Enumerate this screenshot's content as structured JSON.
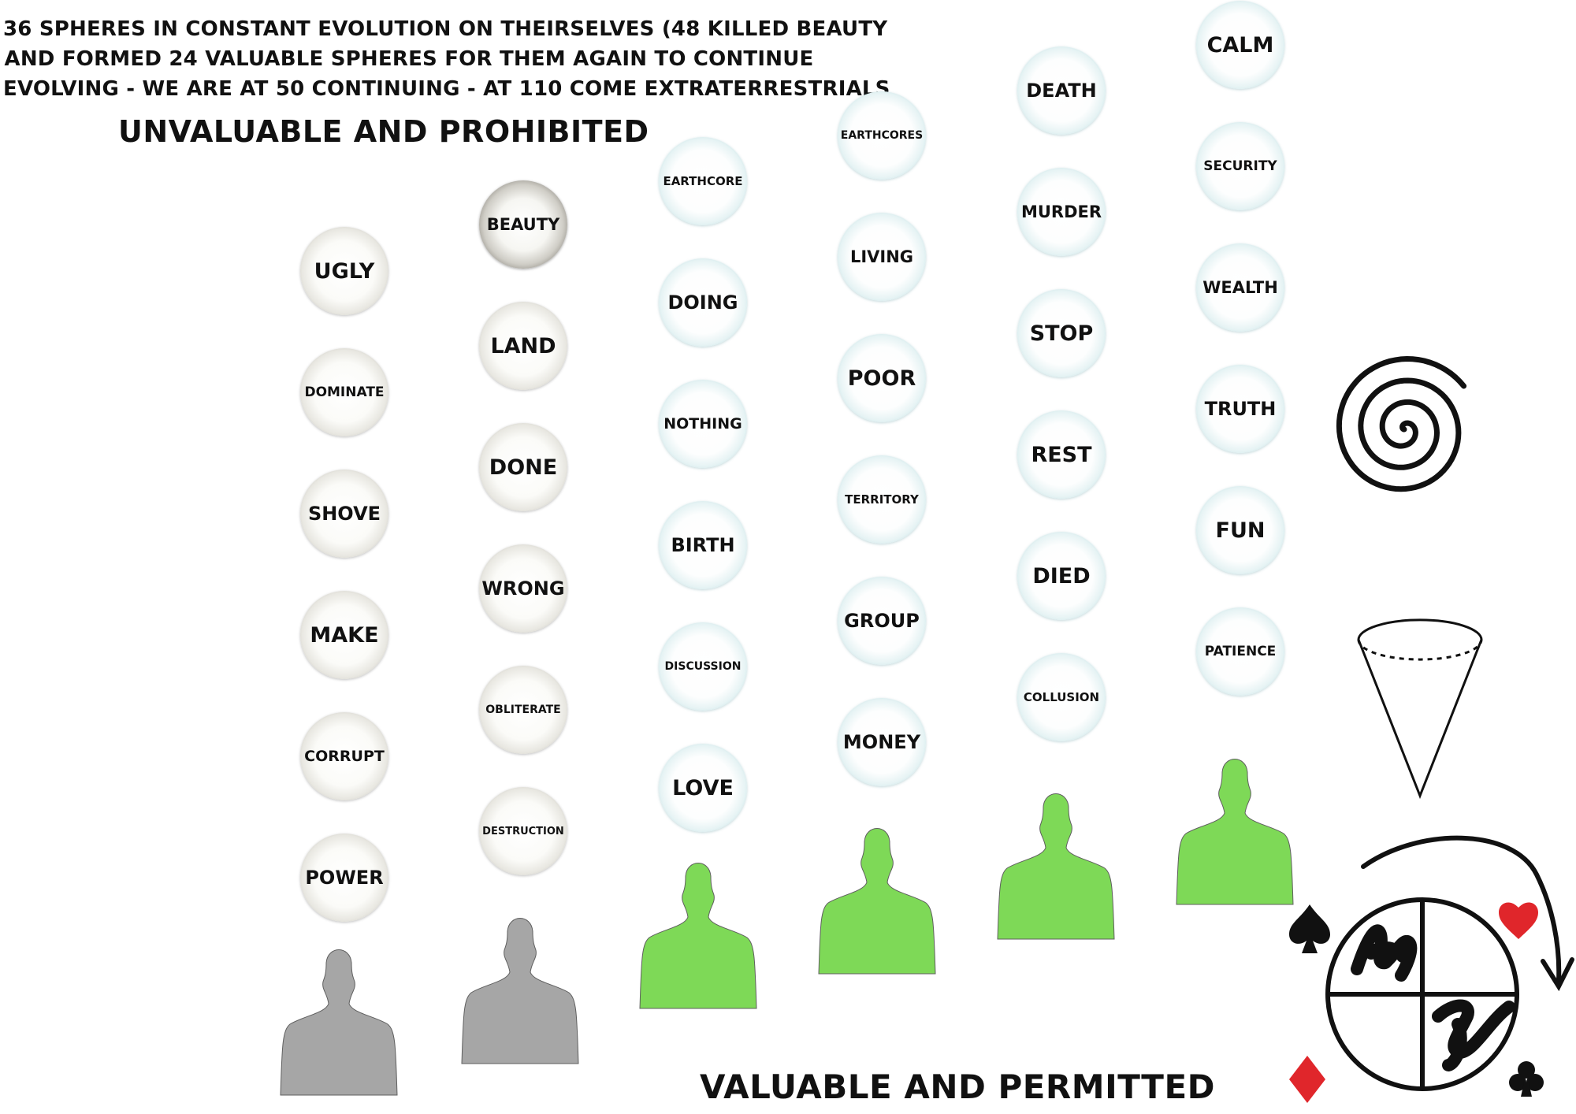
{
  "intro_lines": [
    "36 SPHERES IN CONSTANT EVOLUTION ON THEIRSELVES (48 KILLED BEAUTY",
    "AND FORMED 24 VALUABLE SPHERES FOR THEM AGAIN TO CONTINUE",
    "EVOLVING - WE ARE AT 50 CONTINUING - AT 110 COME EXTRATERRESTRIALS"
  ],
  "heading_left": "UNVALUABLE AND PROHIBITED",
  "heading_right": "VALUABLE AND PERMITTED",
  "colors": {
    "grey_sphere_rim": "#8c8a82",
    "teal_sphere_rim": "#7fbcc3",
    "person_grey": "#a6a6a6",
    "person_green": "#7ed957",
    "suit_red": "#e0262b",
    "ink": "#111111"
  },
  "columns": [
    {
      "group": "unvaluable",
      "person": "grey-person-icon",
      "spheres": [
        {
          "label": "UGLY",
          "tone": "grey"
        },
        {
          "label": "DOMINATE",
          "tone": "grey"
        },
        {
          "label": "SHOVE",
          "tone": "grey"
        },
        {
          "label": "MAKE",
          "tone": "grey"
        },
        {
          "label": "CORRUPT",
          "tone": "grey"
        },
        {
          "label": "POWER",
          "tone": "grey"
        }
      ]
    },
    {
      "group": "unvaluable",
      "person": "grey-person-icon",
      "spheres": [
        {
          "label": "BEAUTY",
          "tone": "dark"
        },
        {
          "label": "LAND",
          "tone": "grey"
        },
        {
          "label": "DONE",
          "tone": "grey"
        },
        {
          "label": "WRONG",
          "tone": "grey"
        },
        {
          "label": "OBLITERATE",
          "tone": "grey"
        },
        {
          "label": "DESTRUCTION",
          "tone": "grey"
        }
      ]
    },
    {
      "group": "valuable",
      "person": "green-person-icon",
      "spheres": [
        {
          "label": "EARTHCORE",
          "tone": "teal"
        },
        {
          "label": "DOING",
          "tone": "teal"
        },
        {
          "label": "NOTHING",
          "tone": "teal"
        },
        {
          "label": "BIRTH",
          "tone": "teal"
        },
        {
          "label": "DISCUSSION",
          "tone": "teal"
        },
        {
          "label": "LOVE",
          "tone": "teal"
        }
      ]
    },
    {
      "group": "valuable",
      "person": "green-person-icon",
      "spheres": [
        {
          "label": "EARTHCORES",
          "tone": "teal"
        },
        {
          "label": "LIVING",
          "tone": "teal"
        },
        {
          "label": "POOR",
          "tone": "teal"
        },
        {
          "label": "TERRITORY",
          "tone": "teal"
        },
        {
          "label": "GROUP",
          "tone": "teal"
        },
        {
          "label": "MONEY",
          "tone": "teal"
        }
      ]
    },
    {
      "group": "valuable",
      "person": "green-person-icon",
      "spheres": [
        {
          "label": "DEATH",
          "tone": "teal"
        },
        {
          "label": "MURDER",
          "tone": "teal"
        },
        {
          "label": "STOP",
          "tone": "teal"
        },
        {
          "label": "REST",
          "tone": "teal"
        },
        {
          "label": "DIED",
          "tone": "teal"
        },
        {
          "label": "COLLUSION",
          "tone": "teal"
        }
      ]
    },
    {
      "group": "valuable",
      "person": "green-person-icon",
      "spheres": [
        {
          "label": "CALM",
          "tone": "teal"
        },
        {
          "label": "SECURITY",
          "tone": "teal"
        },
        {
          "label": "WEALTH",
          "tone": "teal"
        },
        {
          "label": "TRUTH",
          "tone": "teal"
        },
        {
          "label": "FUN",
          "tone": "teal"
        },
        {
          "label": "PATIENCE",
          "tone": "teal"
        }
      ]
    }
  ],
  "symbols": [
    "spiral-icon",
    "cone-icon",
    "quartered-circle-icon",
    "spade-icon",
    "heart-icon",
    "diamond-icon",
    "club-icon",
    "curved-arrow-icon"
  ]
}
